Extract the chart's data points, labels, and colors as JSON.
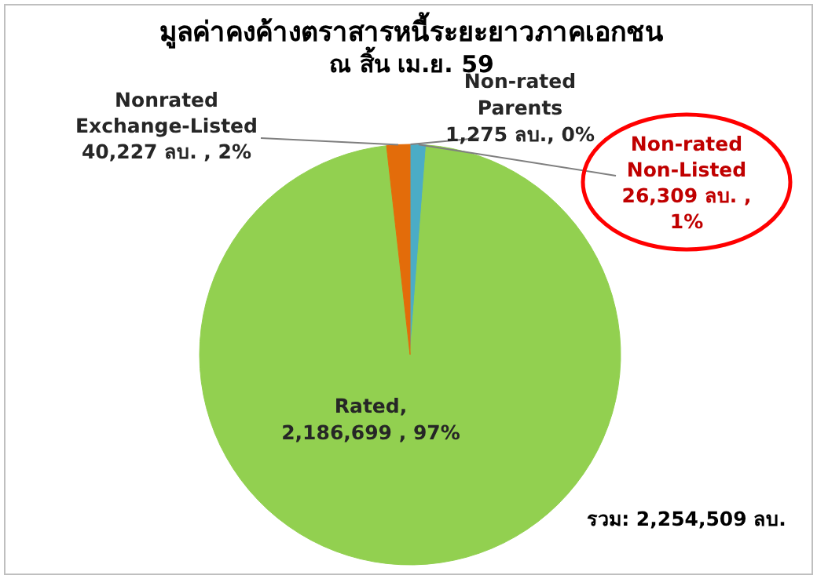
{
  "chart_data": {
    "type": "pie",
    "title": "มูลค่าคงค้างตราสารหนี้ระยะยาวภาคเอกชน",
    "subtitle": "ณ สิ้น เม.ย. 59",
    "categories": [
      "Non-rated Parents",
      "Non-rated Non-Listed",
      "Rated",
      "Nonrated Exchange-Listed"
    ],
    "values": [
      1275,
      26309,
      2186699,
      40227
    ],
    "colors": [
      "#5b9bd5",
      "#4bacc6",
      "#92d050",
      "#e36c0a"
    ],
    "value_labels": [
      "1,275 ลบ., 0%",
      "26,309 ลบ. , 1%",
      ", 2,186,699 , 97%",
      "40,227 ลบ. , 2%"
    ],
    "annotations": [
      "รวม: 2,254,509 ลบ."
    ]
  }
}
